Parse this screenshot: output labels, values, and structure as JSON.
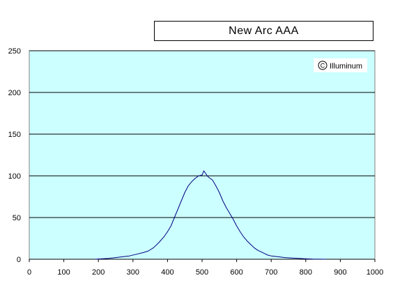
{
  "chart_data": {
    "type": "line",
    "title": "New Arc AAA",
    "xlabel": "",
    "ylabel": "",
    "xlim": [
      0,
      1000
    ],
    "ylim": [
      0,
      250
    ],
    "x_ticks": [
      "0",
      "100",
      "200",
      "300",
      "400",
      "500",
      "600",
      "700",
      "800",
      "900",
      "1000"
    ],
    "y_ticks": [
      "0",
      "50",
      "100",
      "150",
      "200",
      "250"
    ],
    "grid": "horizontal",
    "annotation": "Illuminum",
    "legend": "none",
    "colors": {
      "plot_background": "#ccffff",
      "series_line": "#000080",
      "grid": "#000000"
    },
    "series": [
      {
        "x": [
          190,
          210,
          230,
          250,
          270,
          290,
          310,
          330,
          345,
          360,
          375,
          390,
          400,
          410,
          420,
          430,
          440,
          450,
          460,
          470,
          480,
          490,
          500,
          505,
          510,
          515,
          520,
          530,
          540,
          550,
          560,
          570,
          580,
          590,
          600,
          610,
          620,
          630,
          640,
          650,
          660,
          670,
          680,
          690,
          700,
          720,
          740,
          760,
          780,
          800,
          820,
          840,
          860
        ],
        "y": [
          0,
          0.5,
          1,
          2,
          3,
          4,
          6,
          8,
          10,
          14,
          20,
          27,
          33,
          40,
          50,
          60,
          70,
          80,
          88,
          93,
          97,
          100,
          101,
          106,
          103,
          100,
          98,
          95,
          88,
          80,
          70,
          62,
          55,
          48,
          40,
          33,
          27,
          22,
          18,
          14,
          11,
          9,
          7,
          5,
          4,
          3,
          2,
          1.5,
          1,
          0.5,
          0.2,
          0.1,
          0
        ]
      }
    ]
  }
}
